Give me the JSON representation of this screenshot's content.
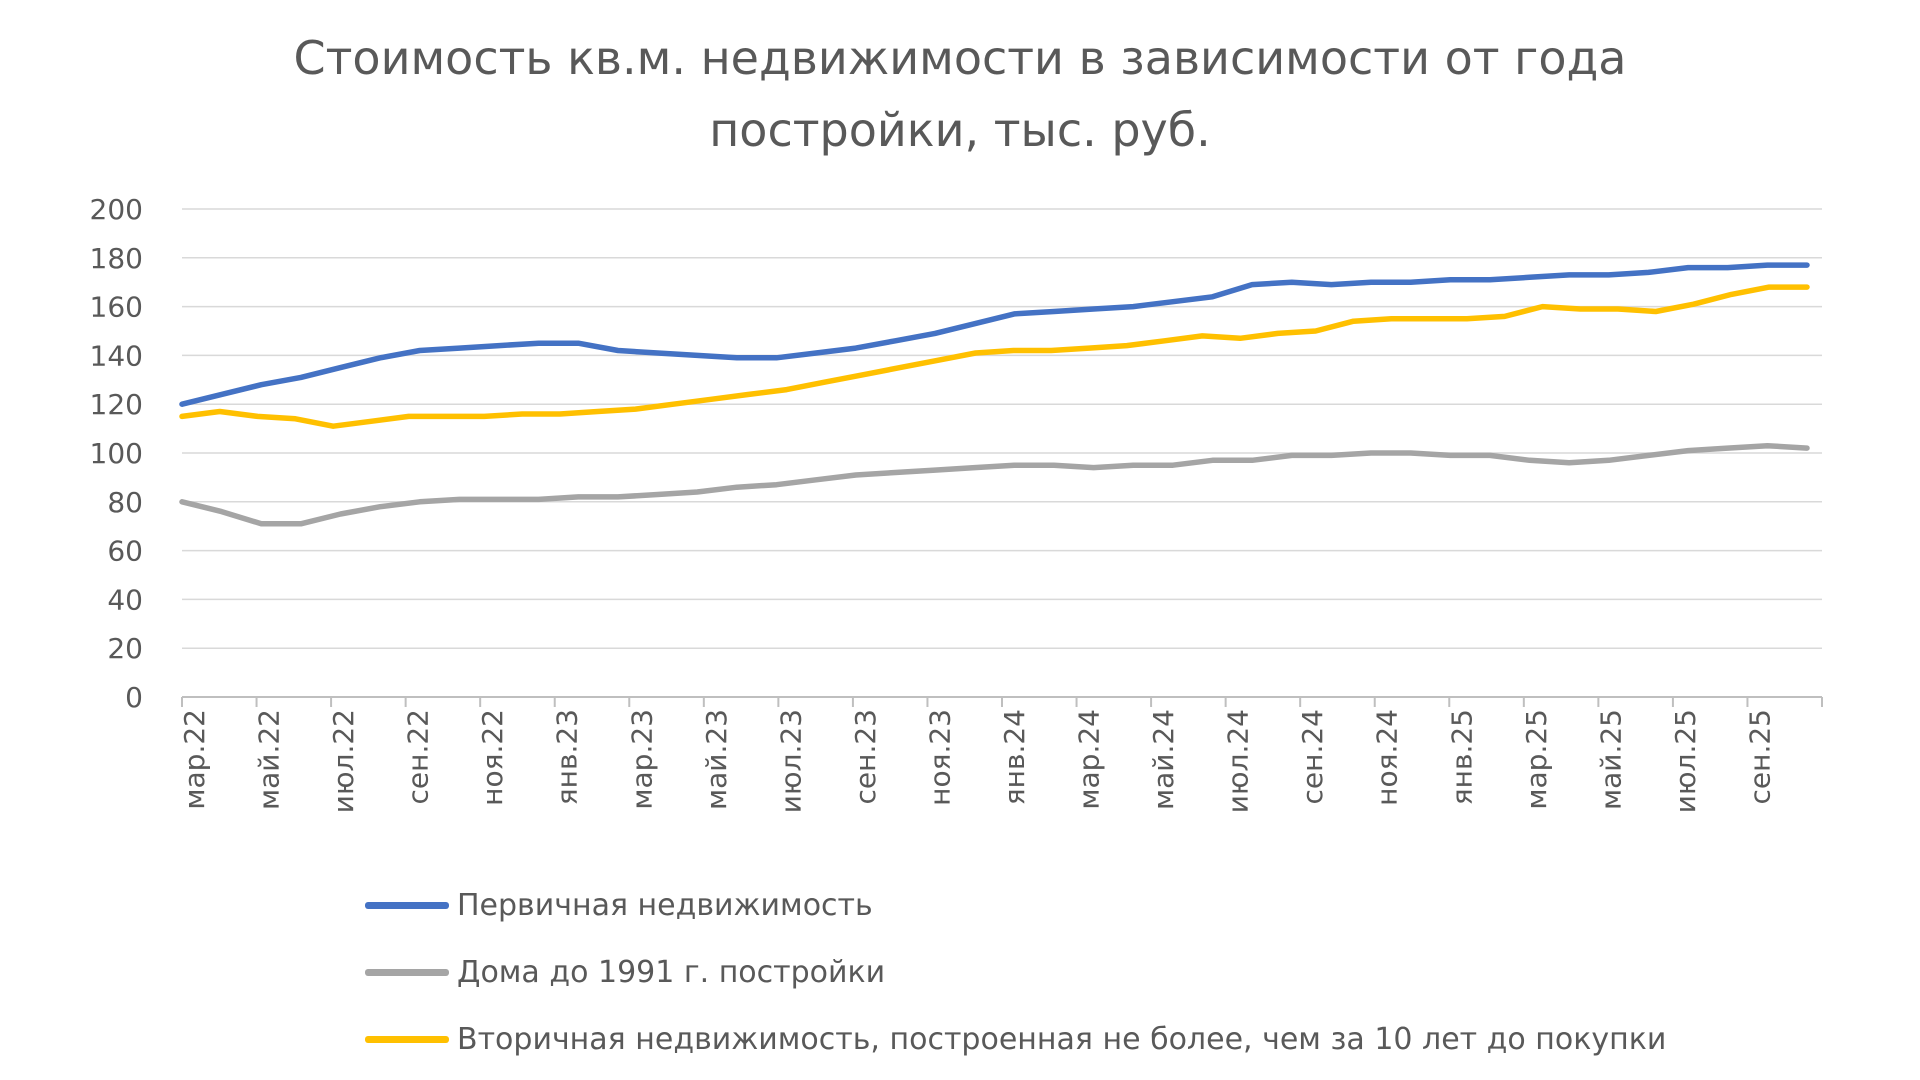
{
  "chart_data": {
    "type": "line",
    "title_lines": [
      "Стоимость кв.м. недвижимости в зависимости от года",
      "постройки, тыс. руб."
    ],
    "ylim": [
      0,
      200
    ],
    "y_ticks": [
      "0",
      "20",
      "40",
      "60",
      "80",
      "100",
      "120",
      "140",
      "160",
      "180",
      "200"
    ],
    "x_tick_labels": [
      "мар.22",
      "май.22",
      "июл.22",
      "сен.22",
      "ноя.22",
      "янв.23",
      "мар.23",
      "май.23",
      "июл.23",
      "сен.23",
      "ноя.23",
      "янв.24",
      "мар.24",
      "май.24",
      "июл.24",
      "сен.24",
      "ноя.24",
      "янв.25",
      "мар.25",
      "май.25",
      "июл.25",
      "сен.25"
    ],
    "grid": true,
    "legend_position": "bottom",
    "series": [
      {
        "name": "Первичная недвижимость",
        "color": "#4472C4",
        "values": [
          120,
          124,
          128,
          131,
          135,
          139,
          142,
          143,
          144,
          145,
          145,
          142,
          141,
          140,
          139,
          139,
          141,
          143,
          146,
          149,
          153,
          157,
          158,
          159,
          160,
          162,
          164,
          169,
          170,
          169,
          170,
          170,
          171,
          171,
          172,
          173,
          173,
          174,
          176,
          176,
          177,
          177
        ]
      },
      {
        "name": "Дома до 1991 г. постройки",
        "color": "#A5A5A5",
        "values": [
          80,
          76,
          71,
          71,
          75,
          78,
          80,
          81,
          81,
          81,
          82,
          82,
          83,
          84,
          86,
          87,
          89,
          91,
          92,
          93,
          94,
          95,
          95,
          94,
          95,
          95,
          97,
          97,
          99,
          99,
          100,
          100,
          99,
          99,
          97,
          96,
          97,
          99,
          101,
          102,
          103,
          102
        ]
      },
      {
        "name": "Вторичная недвижимость, построенная не более, чем за 10 лет до покупки",
        "color": "#FFC000",
        "values": [
          115,
          117,
          115,
          114,
          111,
          113,
          115,
          115,
          115,
          116,
          116,
          117,
          118,
          120,
          122,
          124,
          126,
          129,
          132,
          135,
          138,
          141,
          142,
          142,
          143,
          144,
          146,
          148,
          147,
          149,
          150,
          154,
          155,
          155,
          155,
          156,
          160,
          159,
          159,
          158,
          161,
          165,
          168,
          168
        ]
      }
    ]
  }
}
